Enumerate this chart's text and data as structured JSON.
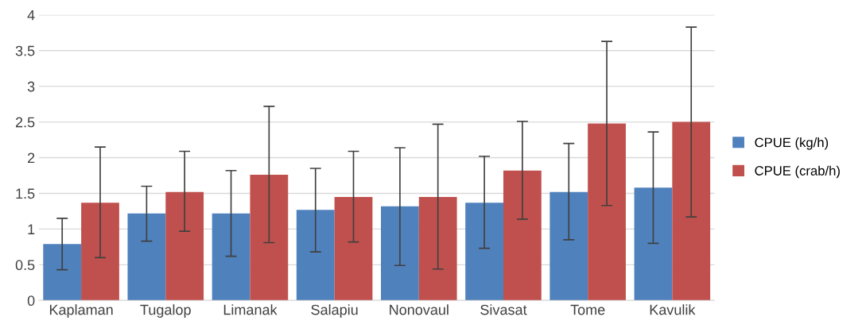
{
  "chart_data": {
    "type": "bar",
    "categories": [
      "Kaplaman",
      "Tugalop",
      "Limanak",
      "Salapiu",
      "Nonovaul",
      "Sivasat",
      "Tome",
      "Kavulik"
    ],
    "series": [
      {
        "name": "CPUE (kg/h)",
        "color": "#4f81bd",
        "values": [
          0.79,
          1.22,
          1.22,
          1.27,
          1.32,
          1.37,
          1.52,
          1.58
        ],
        "errors": [
          [
            0.43,
            1.15
          ],
          [
            0.83,
            1.6
          ],
          [
            0.62,
            1.82
          ],
          [
            0.68,
            1.85
          ],
          [
            0.49,
            2.14
          ],
          [
            0.73,
            2.02
          ],
          [
            0.85,
            2.2
          ],
          [
            0.8,
            2.36
          ]
        ]
      },
      {
        "name": "CPUE (crab/h)",
        "color": "#c0504d",
        "values": [
          1.37,
          1.52,
          1.76,
          1.45,
          1.45,
          1.82,
          2.48,
          2.5
        ],
        "errors": [
          [
            0.6,
            2.15
          ],
          [
            0.97,
            2.09
          ],
          [
            0.81,
            2.72
          ],
          [
            0.82,
            2.09
          ],
          [
            0.44,
            2.47
          ],
          [
            1.14,
            2.51
          ],
          [
            1.33,
            3.63
          ],
          [
            1.17,
            3.83
          ]
        ]
      }
    ],
    "ylim": [
      0,
      4
    ],
    "yticks": [
      0,
      0.5,
      1,
      1.5,
      2,
      2.5,
      3,
      3.5,
      4
    ],
    "grid": "y",
    "legend": "right"
  }
}
